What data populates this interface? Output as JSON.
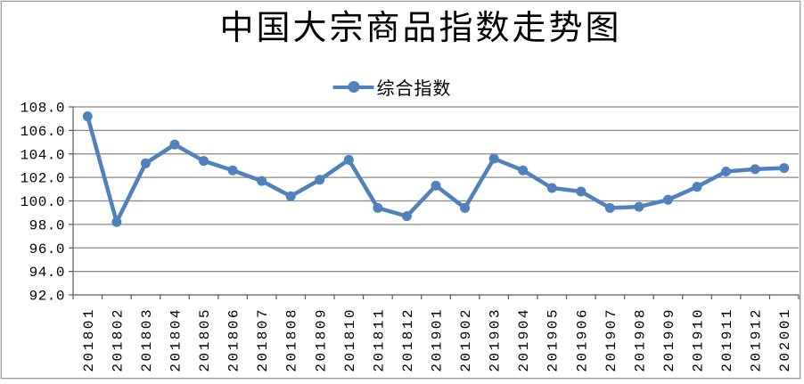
{
  "chart_data": {
    "type": "line",
    "title": "中国大宗商品指数走势图",
    "xlabel": "",
    "ylabel": "",
    "categories": [
      "201801",
      "201802",
      "201803",
      "201804",
      "201805",
      "201806",
      "201807",
      "201808",
      "201809",
      "201810",
      "201811",
      "201812",
      "201901",
      "201902",
      "201903",
      "201904",
      "201905",
      "201906",
      "201907",
      "201908",
      "201909",
      "201910",
      "201911",
      "201912",
      "202001"
    ],
    "series": [
      {
        "name": "综合指数",
        "values": [
          107.2,
          98.2,
          103.2,
          104.8,
          103.4,
          102.6,
          101.7,
          100.4,
          101.8,
          103.5,
          99.4,
          98.7,
          101.3,
          99.4,
          103.6,
          102.6,
          101.1,
          100.8,
          99.4,
          99.5,
          100.1,
          101.2,
          102.5,
          102.7,
          102.8
        ]
      }
    ],
    "ylim": [
      92.0,
      108.0
    ],
    "ytick_step": 2.0,
    "ytick_labels": [
      "108.0",
      "106.0",
      "104.0",
      "102.0",
      "100.0",
      "98.0",
      "96.0",
      "94.0",
      "92.0"
    ],
    "grid": true,
    "legend_position": "top-center",
    "colors": {
      "line": "#4F81BD",
      "marker": "#4F81BD",
      "gridline": "#878787",
      "axis": "#595959",
      "text": "#000000"
    }
  }
}
